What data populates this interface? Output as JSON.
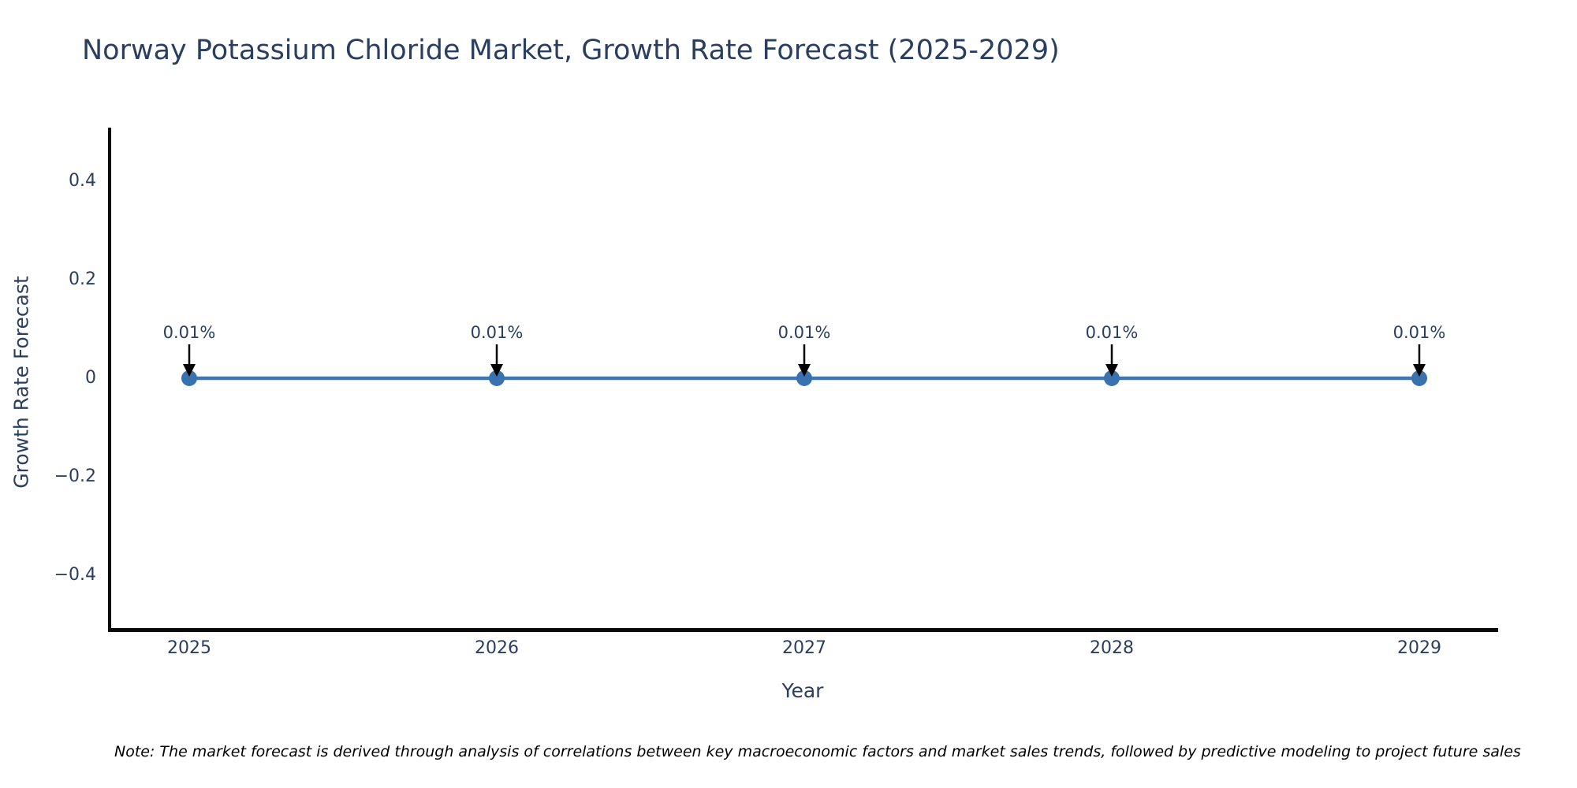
{
  "title": {
    "text": "Norway Potassium Chloride Market, Growth Rate Forecast (2025-2029)"
  },
  "axes": {
    "x_label": "Year",
    "y_label": "Growth Rate Forecast",
    "x_tick_labels": [
      "2025",
      "2026",
      "2027",
      "2028",
      "2029"
    ],
    "y_tick_labels": [
      "0.4",
      "0.2",
      "0",
      "−0.2",
      "−0.4"
    ]
  },
  "annotations": {
    "point_labels": [
      "0.01%",
      "0.01%",
      "0.01%",
      "0.01%",
      "0.01%"
    ]
  },
  "note": "Note: The market forecast is derived through analysis of correlations between key macroeconomic factors and market sales trends, followed by predictive modeling to project future sales",
  "colors": {
    "line": "#3d76b4",
    "marker": "#3a72b0",
    "text": "#2a3f5f",
    "axis": "#0a0a0a",
    "annotation_arrow": "#000000",
    "note_text": "#000000",
    "background": "#ffffff"
  },
  "chart_data": {
    "type": "line",
    "x": [
      2025,
      2026,
      2027,
      2028,
      2029
    ],
    "series": [
      {
        "name": "Growth Rate Forecast",
        "values": [
          0.0001,
          0.0001,
          0.0001,
          0.0001,
          0.0001
        ]
      }
    ],
    "point_labels": [
      "0.01%",
      "0.01%",
      "0.01%",
      "0.01%",
      "0.01%"
    ],
    "title": "Norway Potassium Chloride Market, Growth Rate Forecast (2025-2029)",
    "xlabel": "Year",
    "ylabel": "Growth Rate Forecast",
    "xlim": [
      2024.74,
      2029.26
    ],
    "ylim": [
      -0.52,
      0.52
    ],
    "y_ticks": [
      0.4,
      0.2,
      0,
      -0.2,
      -0.4
    ],
    "grid": false,
    "legend": "none",
    "markers": true,
    "annotation_arrows": true
  }
}
